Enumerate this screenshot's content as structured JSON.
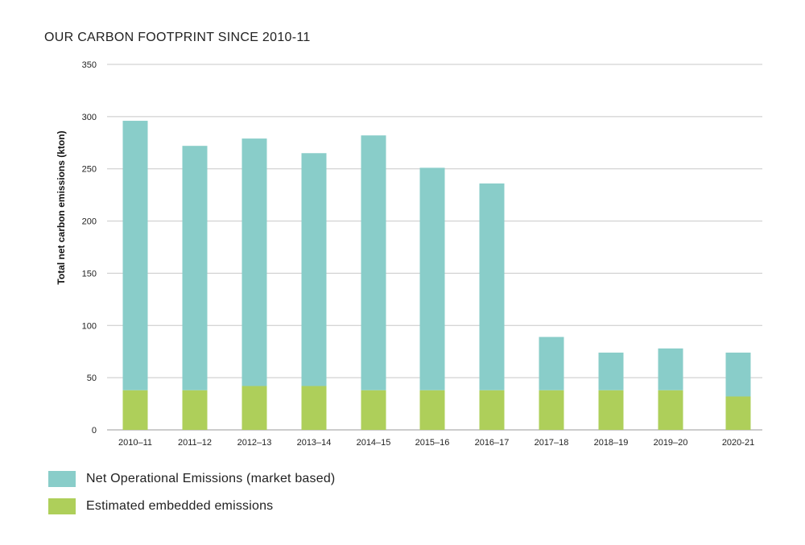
{
  "chart_data": {
    "type": "bar",
    "stacked": true,
    "title": "OUR CARBON FOOTPRINT SINCE 2010-11",
    "xlabel": "",
    "ylabel": "Total net carbon emissions (kton)",
    "ylim": [
      0,
      350
    ],
    "yticks": [
      0,
      50,
      100,
      150,
      200,
      250,
      300,
      350
    ],
    "grid": true,
    "legend_position": "bottom-left",
    "categories": [
      "2010–11",
      "2011–12",
      "2012–13",
      "2013–14",
      "2014–15",
      "2015–16",
      "2016–17",
      "2017–18",
      "2018–19",
      "2019–20",
      "2020-21"
    ],
    "series": [
      {
        "name": "Estimated embedded emissions",
        "color": "#aecf5a",
        "values": [
          38,
          38,
          42,
          42,
          38,
          38,
          38,
          38,
          38,
          38,
          32
        ]
      },
      {
        "name": "Net Operational Emissions (market based)",
        "color": "#89cdc9",
        "values": [
          258,
          234,
          237,
          223,
          244,
          213,
          198,
          51,
          36,
          40,
          42
        ]
      }
    ]
  }
}
